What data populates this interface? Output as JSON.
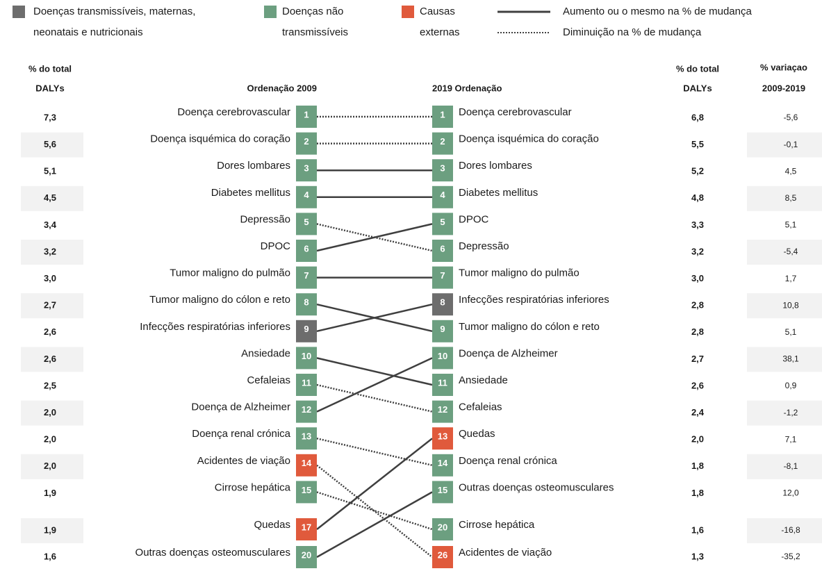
{
  "legend": {
    "groups": [
      {
        "lines": [
          "Doenças transmissíveis, maternas,",
          "neonatais e nutricionais"
        ],
        "color": "#6d6d6d"
      },
      {
        "lines": [
          "Doenças não",
          "transmissíveis"
        ],
        "color": "#6c9f80"
      },
      {
        "lines": [
          "Causas",
          "externas"
        ],
        "color": "#e05a3c"
      }
    ],
    "styles": [
      "Aumento ou o mesmo na % de mudança",
      "Diminuição na % de mudança"
    ]
  },
  "headers": {
    "left_pct": [
      "% do total",
      "DALYs"
    ],
    "left_rank": "Ordenação 2009",
    "right_rank": "2019 Ordenação",
    "right_pct": [
      "% do total",
      "DALYs"
    ],
    "change": [
      "% variaçao",
      "2009-2019"
    ]
  },
  "left": [
    {
      "pct": "7,3",
      "name": "Doença cerebrovascular",
      "rank": 1,
      "color": "#6c9f80"
    },
    {
      "pct": "5,6",
      "name": "Doença isquémica do coração",
      "rank": 2,
      "color": "#6c9f80"
    },
    {
      "pct": "5,1",
      "name": "Dores lombares",
      "rank": 3,
      "color": "#6c9f80"
    },
    {
      "pct": "4,5",
      "name": "Diabetes mellitus",
      "rank": 4,
      "color": "#6c9f80"
    },
    {
      "pct": "3,4",
      "name": "Depressão",
      "rank": 5,
      "color": "#6c9f80"
    },
    {
      "pct": "3,2",
      "name": "DPOC",
      "rank": 6,
      "color": "#6c9f80"
    },
    {
      "pct": "3,0",
      "name": "Tumor maligno do pulmão",
      "rank": 7,
      "color": "#6c9f80"
    },
    {
      "pct": "2,7",
      "name": "Tumor maligno do cólon e reto",
      "rank": 8,
      "color": "#6c9f80"
    },
    {
      "pct": "2,6",
      "name": "Infecções respiratórias inferiores",
      "rank": 9,
      "color": "#6d6d6d"
    },
    {
      "pct": "2,6",
      "name": "Ansiedade",
      "rank": 10,
      "color": "#6c9f80"
    },
    {
      "pct": "2,5",
      "name": "Cefaleias",
      "rank": 11,
      "color": "#6c9f80"
    },
    {
      "pct": "2,0",
      "name": "Doença de Alzheimer",
      "rank": 12,
      "color": "#6c9f80"
    },
    {
      "pct": "2,0",
      "name": "Doença renal crónica",
      "rank": 13,
      "color": "#6c9f80"
    },
    {
      "pct": "2,0",
      "name": "Acidentes de viação",
      "rank": 14,
      "color": "#e05a3c"
    },
    {
      "pct": "1,9",
      "name": "Cirrose hepática",
      "rank": 15,
      "color": "#6c9f80"
    },
    {
      "pct": "1,9",
      "name": "Quedas",
      "rank": 17,
      "color": "#e05a3c"
    },
    {
      "pct": "1,6",
      "name": "Outras doenças osteomusculares",
      "rank": 20,
      "color": "#6c9f80"
    }
  ],
  "right": [
    {
      "rank": 1,
      "name": "Doença cerebrovascular",
      "pct": "6,8",
      "change": "-5,6",
      "color": "#6c9f80"
    },
    {
      "rank": 2,
      "name": "Doença isquémica do coração",
      "pct": "5,5",
      "change": "-0,1",
      "color": "#6c9f80"
    },
    {
      "rank": 3,
      "name": "Dores lombares",
      "pct": "5,2",
      "change": "4,5",
      "color": "#6c9f80"
    },
    {
      "rank": 4,
      "name": "Diabetes mellitus",
      "pct": "4,8",
      "change": "8,5",
      "color": "#6c9f80"
    },
    {
      "rank": 5,
      "name": "DPOC",
      "pct": "3,3",
      "change": "5,1",
      "color": "#6c9f80"
    },
    {
      "rank": 6,
      "name": "Depressão",
      "pct": "3,2",
      "change": "-5,4",
      "color": "#6c9f80"
    },
    {
      "rank": 7,
      "name": "Tumor maligno do pulmão",
      "pct": "3,0",
      "change": "1,7",
      "color": "#6c9f80"
    },
    {
      "rank": 8,
      "name": "Infecções respiratórias inferiores",
      "pct": "2,8",
      "change": "10,8",
      "color": "#6d6d6d"
    },
    {
      "rank": 9,
      "name": "Tumor maligno do cólon e reto",
      "pct": "2,8",
      "change": "5,1",
      "color": "#6c9f80"
    },
    {
      "rank": 10,
      "name": "Doença de Alzheimer",
      "pct": "2,7",
      "change": "38,1",
      "color": "#6c9f80"
    },
    {
      "rank": 11,
      "name": "Ansiedade",
      "pct": "2,6",
      "change": "0,9",
      "color": "#6c9f80"
    },
    {
      "rank": 12,
      "name": "Cefaleias",
      "pct": "2,4",
      "change": "-1,2",
      "color": "#6c9f80"
    },
    {
      "rank": 13,
      "name": "Quedas",
      "pct": "2,0",
      "change": "7,1",
      "color": "#e05a3c"
    },
    {
      "rank": 14,
      "name": "Doença renal crónica",
      "pct": "1,8",
      "change": "-8,1",
      "color": "#6c9f80"
    },
    {
      "rank": 15,
      "name": "Outras doenças osteomusculares",
      "pct": "1,8",
      "change": "12,0",
      "color": "#6c9f80"
    },
    {
      "rank": 20,
      "name": "Cirrose hepática",
      "pct": "1,6",
      "change": "-16,8",
      "color": "#6c9f80"
    },
    {
      "rank": 26,
      "name": "Acidentes de viação",
      "pct": "1,3",
      "change": "-35,2",
      "color": "#e05a3c"
    }
  ]
}
